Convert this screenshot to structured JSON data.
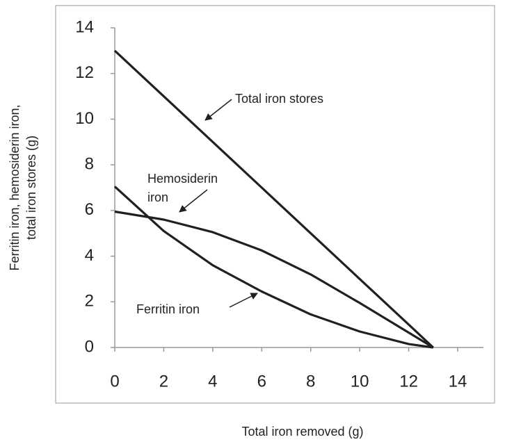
{
  "chart_data": {
    "type": "line",
    "xlabel": "Total iron removed (g)",
    "ylabel": [
      "Ferritin iron, hemosiderin iron,",
      "total iron stores (g)"
    ],
    "x": [
      0,
      2,
      4,
      6,
      8,
      10,
      12,
      13
    ],
    "series": [
      {
        "name": "Total iron stores",
        "color": "#231f20",
        "values": [
          13,
          11,
          9,
          7,
          5,
          3,
          1,
          0
        ]
      },
      {
        "name": "Hemosiderin iron",
        "color": "#231f20",
        "values": [
          5.95,
          5.6,
          5.05,
          4.25,
          3.2,
          1.95,
          0.65,
          0
        ]
      },
      {
        "name": "Ferritin iron",
        "color": "#231f20",
        "values": [
          7.05,
          5.1,
          3.6,
          2.45,
          1.45,
          0.7,
          0.15,
          0
        ]
      }
    ],
    "annotations": [
      [
        "Total iron stores"
      ],
      [
        "Hemosiderin",
        "iron"
      ],
      [
        "Ferritin iron"
      ]
    ],
    "xlim": [
      0,
      14
    ],
    "xticks": [
      0,
      2,
      4,
      6,
      8,
      10,
      12,
      14
    ],
    "ylim": [
      0,
      14
    ],
    "yticks": [
      0,
      2,
      4,
      6,
      8,
      10,
      12,
      14
    ],
    "grid": false
  }
}
